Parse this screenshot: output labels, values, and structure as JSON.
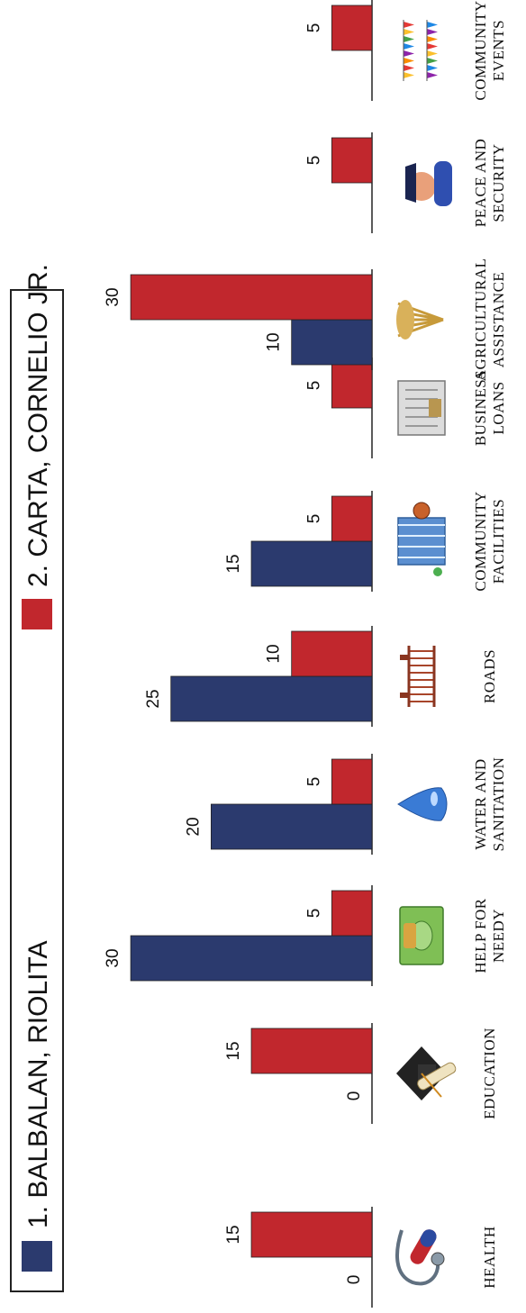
{
  "chart_data": {
    "type": "bar",
    "orientation": "vertical-rotated",
    "categories": [
      {
        "label": [
          "HEALTH"
        ],
        "icon": "stethoscope-pill-icon"
      },
      {
        "label": [
          "EDUCATION"
        ],
        "icon": "graduation-cap-diploma-icon"
      },
      {
        "label": [
          "HELP FOR",
          "NEEDY"
        ],
        "icon": "money-stack-icon"
      },
      {
        "label": [
          "WATER AND",
          "SANITATION"
        ],
        "icon": "water-drop-icon"
      },
      {
        "label": [
          "ROADS"
        ],
        "icon": "bridge-icon"
      },
      {
        "label": [
          "COMMUNITY",
          "FACILITIES"
        ],
        "icon": "building-basketball-icon"
      },
      {
        "label": [
          "BUSINESS",
          "LOANS"
        ],
        "icon": "bank-building-icon"
      },
      {
        "label": [
          "AGRICULTURAL",
          "ASSISTANCE"
        ],
        "icon": "wheat-icon"
      },
      {
        "label": [
          "PEACE AND",
          "SECURITY"
        ],
        "icon": "police-officer-icon"
      },
      {
        "label": [
          "COMMUNITY",
          "EVENTS"
        ],
        "icon": "bunting-flags-icon"
      }
    ],
    "series": [
      {
        "name": "1. BALBALAN, RIOLITA",
        "color": "#2b3a6e",
        "values": [
          0,
          0,
          30,
          20,
          25,
          15,
          null,
          10,
          null,
          null
        ]
      },
      {
        "name": "2. CARTA, CORNELIO JR.",
        "color": "#c1272d",
        "values": [
          15,
          15,
          5,
          5,
          10,
          5,
          5,
          30,
          5,
          5
        ]
      }
    ],
    "legend": {
      "position": "top",
      "entries": [
        "1. BALBALAN, RIOLITA",
        "2. CARTA, CORNELIO JR."
      ]
    }
  }
}
